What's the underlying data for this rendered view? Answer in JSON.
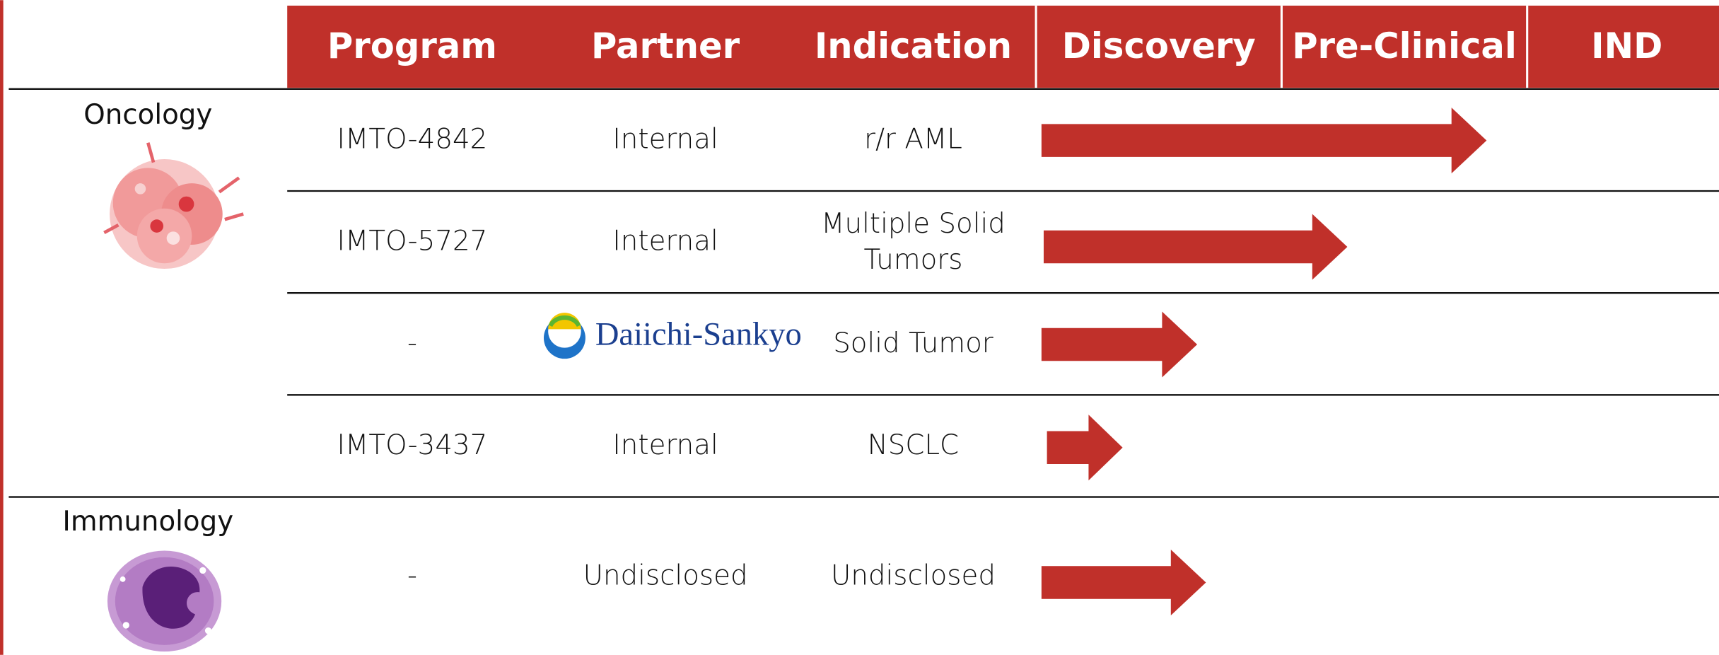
{
  "columns": [
    "Program",
    "Partner",
    "Indication",
    "Discovery",
    "Pre-Clinical",
    "IND"
  ],
  "areas": [
    "Oncology",
    "Immunology"
  ],
  "rows": [
    {
      "program": "IMTO-4842",
      "partner": "Internal",
      "indication": "r/r AML"
    },
    {
      "program": "IMTO-5727",
      "partner": "Internal",
      "indication": "Multiple Solid Tumors"
    },
    {
      "program": "-",
      "partner": "Daiichi-Sankyo",
      "indication": "Solid Tumor"
    },
    {
      "program": "IMTO-3437",
      "partner": "Internal",
      "indication": "NSCLC"
    },
    {
      "program": "-",
      "partner": "Undisclosed",
      "indication": "Undisclosed"
    }
  ]
}
